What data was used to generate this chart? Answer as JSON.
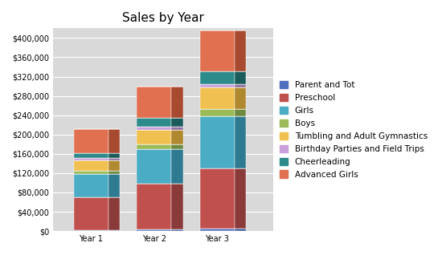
{
  "title": "Sales by Year",
  "categories": [
    "Year 1",
    "Year 2",
    "Year 3"
  ],
  "series": [
    {
      "name": "Parent and Tot",
      "values": [
        2000,
        3000,
        5000
      ],
      "color": "#4F6EBD",
      "dark": "#3A5294"
    },
    {
      "name": "Preschool",
      "values": [
        68000,
        95000,
        125000
      ],
      "color": "#C0504D",
      "dark": "#8B3A3A"
    },
    {
      "name": "Girls",
      "values": [
        48000,
        72000,
        108000
      ],
      "color": "#4BACC6",
      "dark": "#2E7A91"
    },
    {
      "name": "Boys",
      "values": [
        7000,
        10000,
        15000
      ],
      "color": "#9BBB59",
      "dark": "#6E8A3E"
    },
    {
      "name": "Tumbling and Adult Gymnastics",
      "values": [
        22000,
        30000,
        44000
      ],
      "color": "#F0C050",
      "dark": "#B08830"
    },
    {
      "name": "Birthday Parties and Field Trips",
      "values": [
        4000,
        6000,
        8000
      ],
      "color": "#C9A0DC",
      "dark": "#9070A0"
    },
    {
      "name": "Cheerleading",
      "values": [
        10000,
        18000,
        26000
      ],
      "color": "#2E8B8B",
      "dark": "#1A5C5C"
    },
    {
      "name": "Advanced Girls",
      "values": [
        50000,
        65000,
        84000
      ],
      "color": "#E07050",
      "dark": "#A84A30"
    }
  ],
  "ylim": [
    0,
    420000
  ],
  "yticks": [
    0,
    40000,
    80000,
    120000,
    160000,
    200000,
    240000,
    280000,
    320000,
    360000,
    400000
  ],
  "background_color": "#FFFFFF",
  "plot_bg_color": "#D9D9D9",
  "title_fontsize": 11,
  "tick_fontsize": 7,
  "legend_fontsize": 7.5,
  "bar_width": 0.55,
  "depth": 0.18,
  "grid_color": "#FFFFFF",
  "figsize": [
    5.5,
    3.18
  ],
  "dpi": 100
}
